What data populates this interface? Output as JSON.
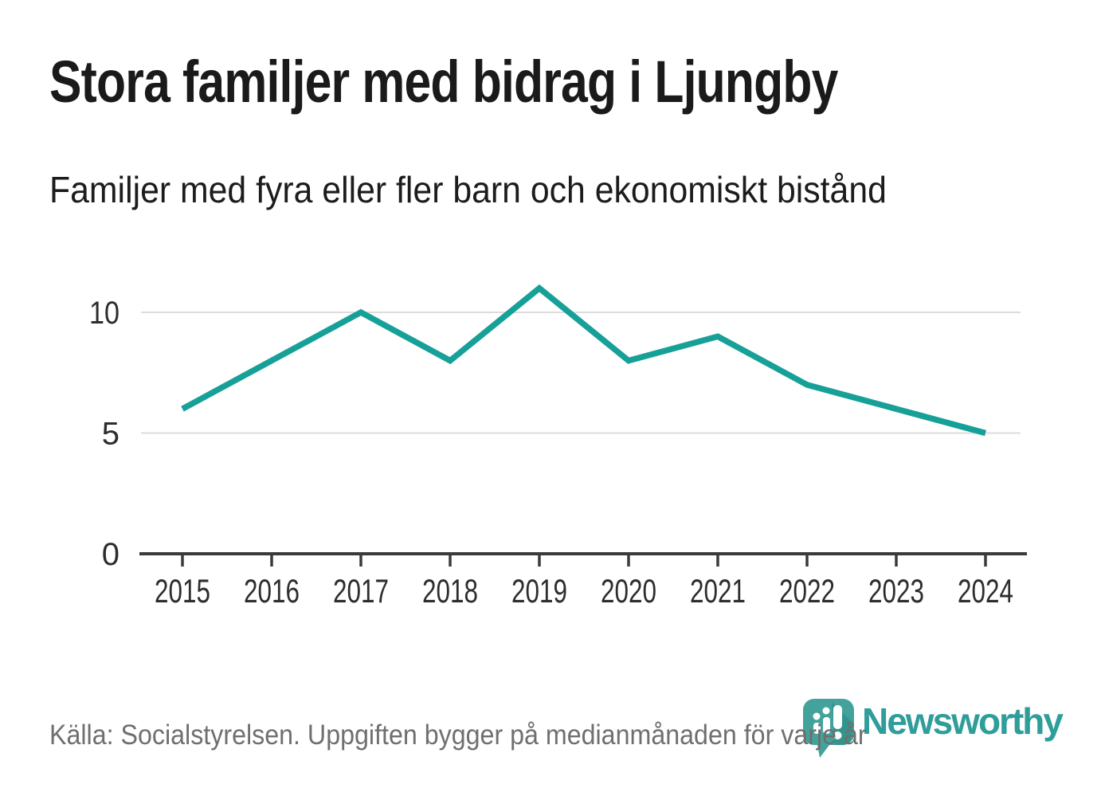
{
  "header": {
    "title": "Stora familjer med bidrag i Ljungby",
    "subtitle": "Familjer med fyra eller fler barn och ekonomiskt bistånd"
  },
  "chart_data": {
    "type": "line",
    "title": "Stora familjer med bidrag i Ljungby",
    "subtitle": "Familjer med fyra eller fler barn och ekonomiskt bistånd",
    "categories": [
      "2015",
      "2016",
      "2017",
      "2018",
      "2019",
      "2020",
      "2021",
      "2022",
      "2023",
      "2024"
    ],
    "series": [
      {
        "name": "Familjer med fyra eller fler barn och ekonomiskt bistånd",
        "values": [
          6,
          8,
          10,
          8,
          11,
          8,
          9,
          7,
          6,
          5
        ]
      }
    ],
    "xlabel": "",
    "ylabel": "",
    "yticks": [
      0,
      5,
      10
    ],
    "ylim": [
      0,
      11.5
    ],
    "grid": "horizontal-only",
    "legend": "none",
    "line_color": "#16a098",
    "gridline_color": "#dcdcdc",
    "axis_color": "#3a3a3a",
    "tick_label_color": "#2d2d2d"
  },
  "footer": {
    "source": "Källa: Socialstyrelsen. Uppgiften bygger på medianmånaden för varje år"
  },
  "logo": {
    "brand": "Newsworthy",
    "brand_color": "#2f9d9a",
    "icon_color": "#43a39c",
    "icon_shadow_color": "#33948d"
  }
}
